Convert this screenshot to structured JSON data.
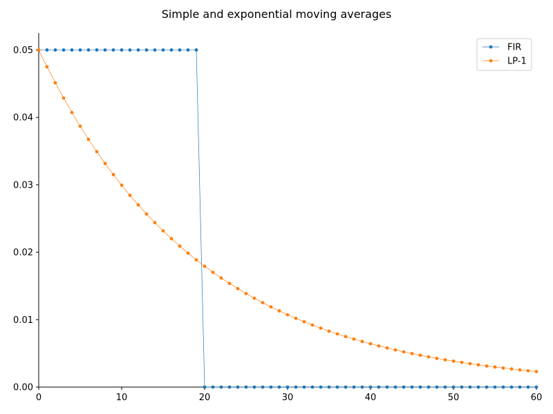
{
  "chart_data": {
    "type": "line",
    "title": "Simple and exponential moving averages",
    "xlabel": "",
    "ylabel": "",
    "xlim": [
      0,
      60
    ],
    "ylim": [
      0,
      0.0525
    ],
    "xticks": [
      0,
      10,
      20,
      30,
      40,
      50,
      60
    ],
    "xtick_labels": [
      "0",
      "10",
      "20",
      "30",
      "40",
      "50",
      "60"
    ],
    "yticks": [
      0,
      0.01,
      0.02,
      0.03,
      0.04,
      0.05
    ],
    "ytick_labels": [
      "0.00",
      "0.01",
      "0.02",
      "0.03",
      "0.04",
      "0.05"
    ],
    "grid": false,
    "legend_position": "top-right",
    "x": [
      0,
      1,
      2,
      3,
      4,
      5,
      6,
      7,
      8,
      9,
      10,
      11,
      12,
      13,
      14,
      15,
      16,
      17,
      18,
      19,
      20,
      21,
      22,
      23,
      24,
      25,
      26,
      27,
      28,
      29,
      30,
      31,
      32,
      33,
      34,
      35,
      36,
      37,
      38,
      39,
      40,
      41,
      42,
      43,
      44,
      45,
      46,
      47,
      48,
      49,
      50,
      51,
      52,
      53,
      54,
      55,
      56,
      57,
      58,
      59,
      60
    ],
    "series": [
      {
        "name": "FIR",
        "color": "#1f77b4",
        "values": [
          0.05,
          0.05,
          0.05,
          0.05,
          0.05,
          0.05,
          0.05,
          0.05,
          0.05,
          0.05,
          0.05,
          0.05,
          0.05,
          0.05,
          0.05,
          0.05,
          0.05,
          0.05,
          0.05,
          0.05,
          0,
          0,
          0,
          0,
          0,
          0,
          0,
          0,
          0,
          0,
          0,
          0,
          0,
          0,
          0,
          0,
          0,
          0,
          0,
          0,
          0,
          0,
          0,
          0,
          0,
          0,
          0,
          0,
          0,
          0,
          0,
          0,
          0,
          0,
          0,
          0,
          0,
          0,
          0,
          0,
          0
        ]
      },
      {
        "name": "LP-1",
        "color": "#ff7f0e",
        "values": [
          0.05,
          0.0475,
          0.04513,
          0.04287,
          0.04073,
          0.03869,
          0.03675,
          0.03492,
          0.03317,
          0.03151,
          0.02994,
          0.02844,
          0.02702,
          0.02567,
          0.02439,
          0.02317,
          0.02201,
          0.02091,
          0.01986,
          0.01887,
          0.01792,
          0.01703,
          0.01618,
          0.01537,
          0.0146,
          0.01387,
          0.01318,
          0.01252,
          0.01189,
          0.0113,
          0.01073,
          0.0102,
          0.00969,
          0.0092,
          0.00874,
          0.0083,
          0.00789,
          0.00749,
          0.00712,
          0.00676,
          0.00643,
          0.0061,
          0.0058,
          0.00551,
          0.00523,
          0.00497,
          0.00472,
          0.00449,
          0.00426,
          0.00405,
          0.00385,
          0.00366,
          0.00347,
          0.0033,
          0.00313,
          0.00298,
          0.00283,
          0.00269,
          0.00255,
          0.00242,
          0.0023
        ]
      }
    ]
  }
}
